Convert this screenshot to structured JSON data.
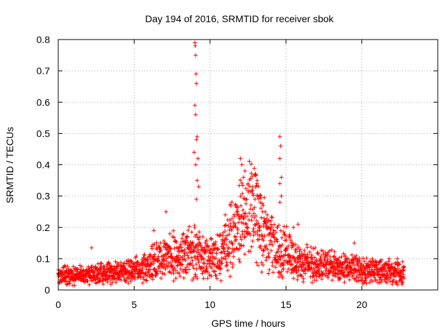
{
  "chart_data": {
    "type": "scatter",
    "title": "Day 194 of 2016, SRMTID for receiver sbok",
    "xlabel": "GPS time / hours",
    "ylabel": "SRMTID / TECUs",
    "xlim": [
      0,
      25
    ],
    "ylim": [
      0,
      0.8
    ],
    "grid": true,
    "marker": "+",
    "color": "#ff0000",
    "x_ticks": [
      0,
      5,
      10,
      15,
      20
    ],
    "y_ticks": [
      0,
      0.1,
      0.2,
      0.3,
      0.4,
      0.5,
      0.6,
      0.7,
      0.8
    ],
    "x_tick_labels": [
      "0",
      "5",
      "10",
      "15",
      "20"
    ],
    "y_tick_labels": [
      "0",
      "0.1",
      "0.2",
      "0.3",
      "0.4",
      "0.5",
      "0.6",
      "0.7",
      "0.8"
    ],
    "series": [
      {
        "name": "SRMTID",
        "trend": {
          "x": [
            0,
            1,
            2,
            3,
            4,
            5,
            6,
            7,
            7.5,
            8,
            8.5,
            9,
            9.5,
            10,
            10.5,
            11,
            11.5,
            12,
            12.5,
            13,
            13.5,
            14,
            14.5,
            15,
            15.5,
            16,
            17,
            18,
            19,
            20,
            21,
            22,
            22.8
          ],
          "y": [
            0.045,
            0.045,
            0.05,
            0.055,
            0.06,
            0.065,
            0.08,
            0.1,
            0.11,
            0.1,
            0.12,
            0.13,
            0.11,
            0.1,
            0.11,
            0.13,
            0.18,
            0.22,
            0.25,
            0.27,
            0.19,
            0.15,
            0.13,
            0.12,
            0.1,
            0.09,
            0.08,
            0.075,
            0.07,
            0.065,
            0.06,
            0.06,
            0.055
          ]
        },
        "peaks": [
          {
            "x": 2.2,
            "y": 0.135
          },
          {
            "x": 6.3,
            "y": 0.19
          },
          {
            "x": 7.1,
            "y": 0.25
          },
          {
            "x": 9.0,
            "y": 0.79
          },
          {
            "x": 9.02,
            "y": 0.78
          },
          {
            "x": 9.05,
            "y": 0.75
          },
          {
            "x": 9.08,
            "y": 0.69
          },
          {
            "x": 9.1,
            "y": 0.66
          },
          {
            "x": 9.0,
            "y": 0.59
          },
          {
            "x": 9.05,
            "y": 0.56
          },
          {
            "x": 9.15,
            "y": 0.49
          },
          {
            "x": 9.1,
            "y": 0.48
          },
          {
            "x": 8.95,
            "y": 0.44
          },
          {
            "x": 9.2,
            "y": 0.42
          },
          {
            "x": 9.05,
            "y": 0.4
          },
          {
            "x": 9.15,
            "y": 0.35
          },
          {
            "x": 9.25,
            "y": 0.33
          },
          {
            "x": 9.1,
            "y": 0.29
          },
          {
            "x": 11.0,
            "y": 0.24
          },
          {
            "x": 12.0,
            "y": 0.42
          },
          {
            "x": 12.1,
            "y": 0.4
          },
          {
            "x": 12.3,
            "y": 0.38
          },
          {
            "x": 12.2,
            "y": 0.36
          },
          {
            "x": 12.5,
            "y": 0.34
          },
          {
            "x": 12.8,
            "y": 0.33
          },
          {
            "x": 13.0,
            "y": 0.37
          },
          {
            "x": 13.1,
            "y": 0.35
          },
          {
            "x": 13.3,
            "y": 0.3
          },
          {
            "x": 13.5,
            "y": 0.27
          },
          {
            "x": 14.6,
            "y": 0.49
          },
          {
            "x": 14.65,
            "y": 0.46
          },
          {
            "x": 14.6,
            "y": 0.42
          },
          {
            "x": 14.7,
            "y": 0.36
          },
          {
            "x": 14.6,
            "y": 0.34
          },
          {
            "x": 14.7,
            "y": 0.3
          },
          {
            "x": 14.6,
            "y": 0.28
          },
          {
            "x": 15.5,
            "y": 0.2
          },
          {
            "x": 15.8,
            "y": 0.21
          },
          {
            "x": 19.5,
            "y": 0.15
          },
          {
            "x": 21.8,
            "y": 0.1
          }
        ]
      }
    ]
  }
}
